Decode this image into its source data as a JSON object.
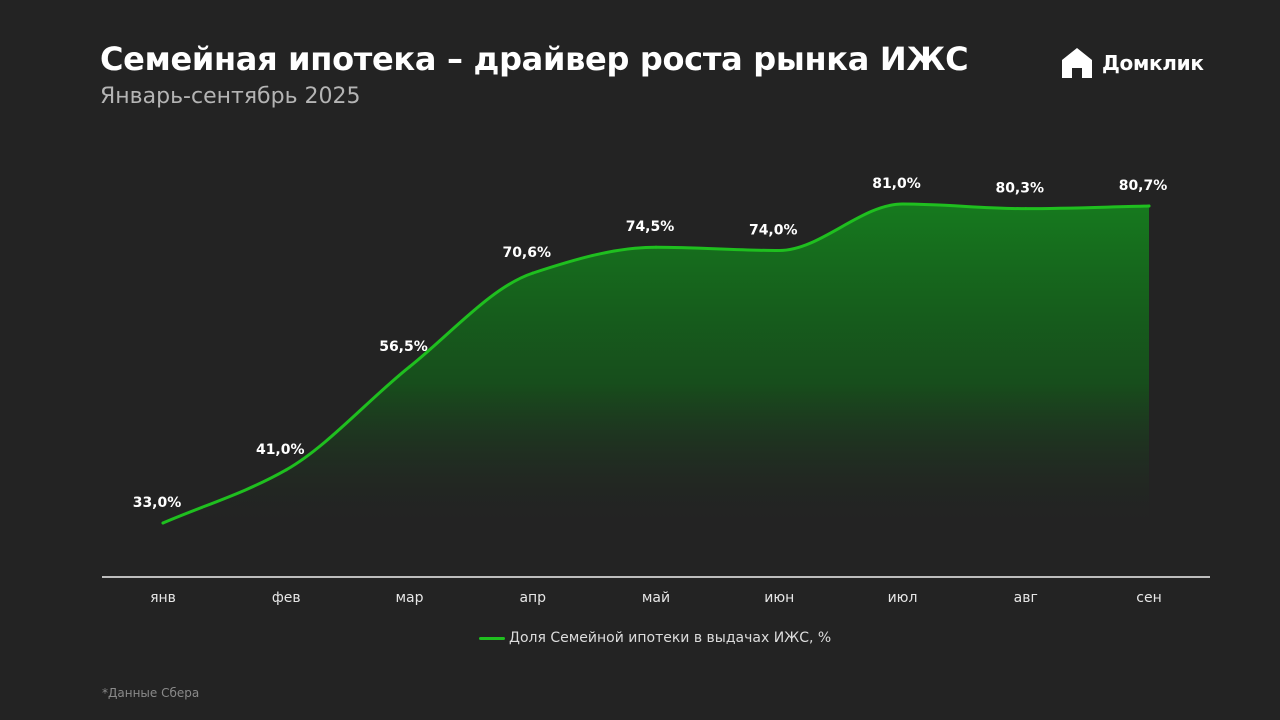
{
  "header": {
    "title": "Семейная ипотека – драйвер роста рынка ИЖС",
    "subtitle": "Январь-сентябрь 2025"
  },
  "logo": {
    "text": "Домклик",
    "icon": "domclick-house-icon"
  },
  "chart_data": {
    "type": "area",
    "title": "Семейная ипотека – драйвер роста рынка ИЖС",
    "subtitle": "Январь-сентябрь 2025",
    "categories": [
      "янв",
      "фев",
      "мар",
      "апр",
      "май",
      "июн",
      "июл",
      "авг",
      "сен"
    ],
    "series": [
      {
        "name": "Доля Семейной ипотеки в выдачах ИЖС, %",
        "values": [
          33.0,
          41.0,
          56.5,
          70.6,
          74.5,
          74.0,
          81.0,
          80.3,
          80.7
        ],
        "labels": [
          "33,0%",
          "41,0%",
          "56,5%",
          "70,6%",
          "74,5%",
          "74,0%",
          "81,0%",
          "80,3%",
          "80,7%"
        ],
        "color": "#1fbf1f"
      }
    ],
    "xlabel": "",
    "ylabel": "",
    "grid": false,
    "legend_position": "bottom-center",
    "fill_color": "#1a7a1a"
  },
  "footnote": "*Данные Сбера"
}
